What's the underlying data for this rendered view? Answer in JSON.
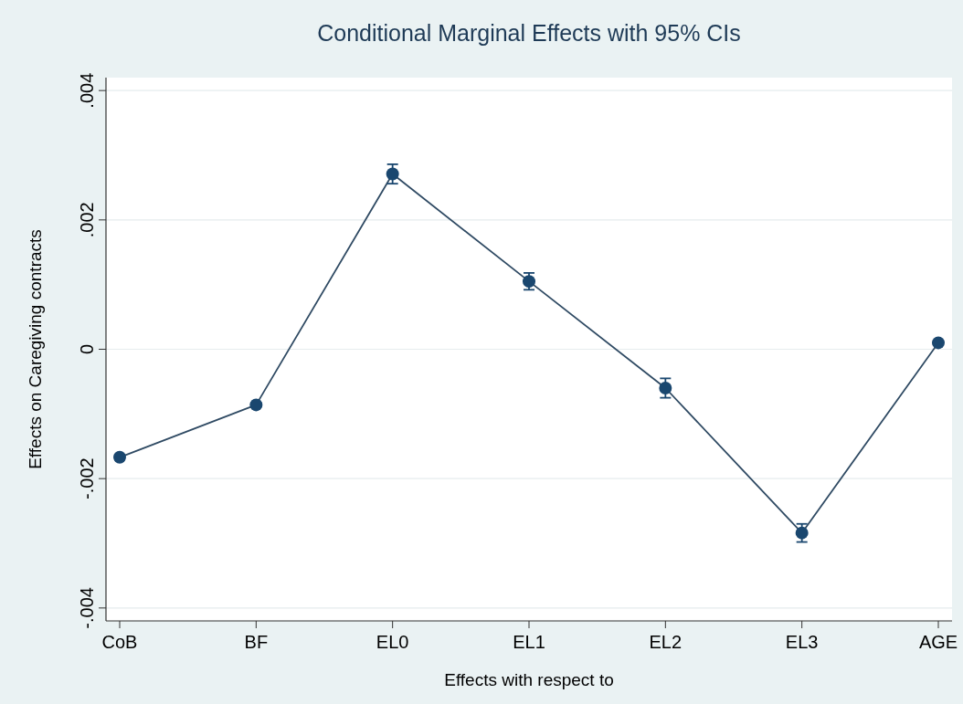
{
  "chart_data": {
    "type": "line",
    "title": "Conditional Marginal Effects with 95% CIs",
    "xlabel": "Effects with respect to",
    "ylabel": "Effects on Caregiving contracts",
    "categories": [
      "CoB",
      "BF",
      "EL0",
      "EL1",
      "EL2",
      "EL3",
      "AGE"
    ],
    "series": [
      {
        "color": "#1a476f",
        "values": [
          -0.00167,
          -0.00086,
          0.00271,
          0.00105,
          -0.0006,
          -0.00284,
          0.0001
        ],
        "errors": [
          4e-05,
          3e-05,
          0.00015,
          0.00013,
          0.00015,
          0.00014,
          null
        ]
      }
    ],
    "ylim": [
      -0.0042,
      0.0042
    ],
    "yticks": [
      {
        "value": -0.004,
        "label": "-.004"
      },
      {
        "value": -0.002,
        "label": "-.002"
      },
      {
        "value": 0,
        "label": "0"
      },
      {
        "value": 0.002,
        "label": ".002"
      },
      {
        "value": 0.004,
        "label": ".004"
      }
    ],
    "grid": "y",
    "marker": "circle",
    "line_style": "solid"
  }
}
